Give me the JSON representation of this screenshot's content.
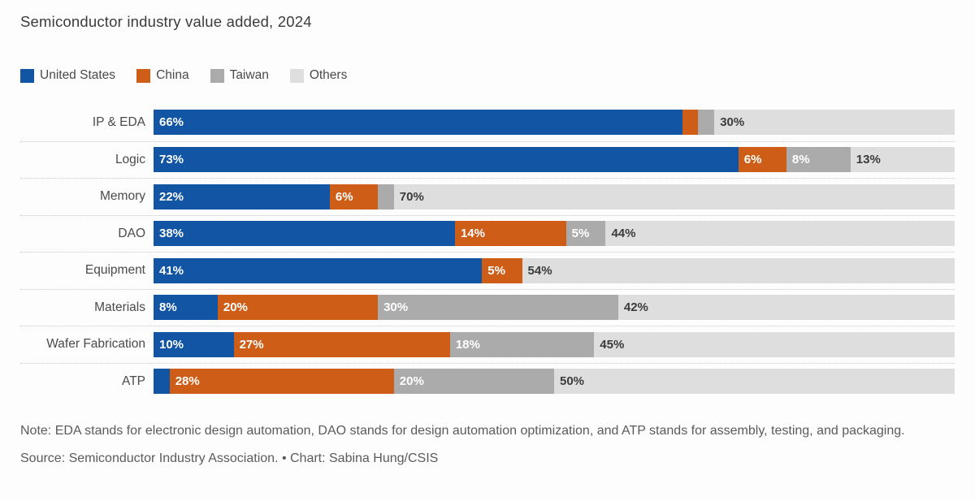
{
  "chart_data": {
    "type": "bar",
    "orientation": "horizontal",
    "stacked": true,
    "title": "Semiconductor industry value added, 2024",
    "legend_position": "top-left",
    "grid": false,
    "value_unit": "%",
    "categories": [
      "IP & EDA",
      "Logic",
      "Memory",
      "DAO",
      "Equipment",
      "Materials",
      "Wafer Fabrication",
      "ATP"
    ],
    "series": [
      {
        "name": "United States",
        "color": "#1155a4",
        "values": [
          66,
          73,
          22,
          38,
          41,
          8,
          10,
          2
        ],
        "labels": [
          "66%",
          "73%",
          "22%",
          "38%",
          "41%",
          "8%",
          "10%",
          ""
        ],
        "label_color": "#ffffff"
      },
      {
        "name": "China",
        "color": "#ce5e17",
        "values": [
          2,
          6,
          6,
          14,
          5,
          20,
          27,
          28
        ],
        "labels": [
          "",
          "6%",
          "6%",
          "14%",
          "5%",
          "20%",
          "27%",
          "28%"
        ],
        "label_color": "#ffffff"
      },
      {
        "name": "Taiwan",
        "color": "#ababab",
        "values": [
          2,
          8,
          2,
          5,
          0,
          30,
          18,
          20
        ],
        "labels": [
          "",
          "8%",
          "",
          "5%",
          "",
          "30%",
          "18%",
          "20%"
        ],
        "label_color": "#ffffff"
      },
      {
        "name": "Others",
        "color": "#dedede",
        "values": [
          30,
          13,
          70,
          44,
          54,
          42,
          45,
          50
        ],
        "labels": [
          "30%",
          "13%",
          "70%",
          "44%",
          "54%",
          "42%",
          "45%",
          "50%"
        ],
        "label_color": "#3b3b3b"
      }
    ]
  },
  "note": "Note: EDA stands for electronic design automation, DAO stands for design automation optimization, and ATP stands for assembly, testing, and packaging.",
  "source": "Source: Semiconductor Industry Association. • Chart: Sabina Hung/CSIS"
}
